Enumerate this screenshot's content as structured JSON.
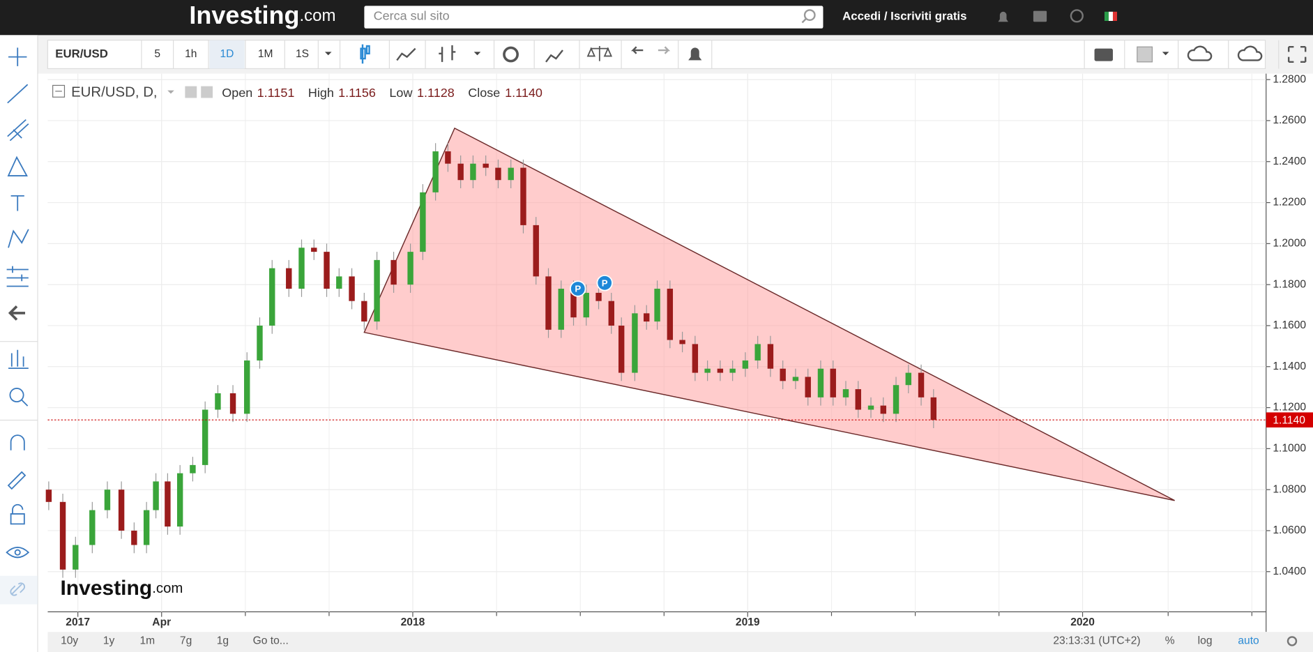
{
  "header": {
    "logo_main": "Investing",
    "logo_suffix": ".com",
    "search_placeholder": "Cerca sul sito",
    "login": "Accedi / Iscriviti gratis"
  },
  "toolbar": {
    "symbol": "EUR/USD",
    "intervals": [
      "5",
      "1h",
      "1D",
      "1M",
      "1S"
    ]
  },
  "bottom_bar": {
    "ranges": [
      "10y",
      "1y",
      "1m",
      "7g",
      "1g"
    ],
    "goto": "Go to...",
    "clock": "23:13:31 (UTC+2)",
    "percent": "%",
    "log": "log",
    "auto": "auto"
  },
  "chart_data": {
    "type": "candlestick",
    "legend_title": "EUR/USD, D,",
    "watermark_main": "Investing",
    "watermark_suffix": ".com",
    "ohlc_labels": {
      "open": "Open",
      "high": "High",
      "low": "Low",
      "close": "Close"
    },
    "ohlc": {
      "open": 1.1151,
      "high": 1.1156,
      "low": 1.1128,
      "close": {
        "value": 1.114,
        "label": "1.1140"
      }
    },
    "last_price": {
      "value": 1.114,
      "label": "1.1140"
    },
    "up_color": "#3aa53a",
    "down_color": "#9b1c1c",
    "x": [
      2016.913,
      2016.955,
      2016.993,
      2017.043,
      2017.088,
      2017.13,
      2017.168,
      2017.205,
      2017.233,
      2017.268,
      2017.305,
      2017.343,
      2017.38,
      2017.418,
      2017.463,
      2017.505,
      2017.543,
      2017.58,
      2017.63,
      2017.668,
      2017.705,
      2017.743,
      2017.78,
      2017.818,
      2017.855,
      2017.893,
      2017.943,
      2017.993,
      2018.03,
      2018.068,
      2018.105,
      2018.143,
      2018.18,
      2018.218,
      2018.255,
      2018.293,
      2018.33,
      2018.368,
      2018.405,
      2018.443,
      2018.48,
      2018.518,
      2018.555,
      2018.593,
      2018.623,
      2018.663,
      2018.698,
      2018.73,
      2018.768,
      2018.805,
      2018.843,
      2018.88,
      2018.918,
      2018.955,
      2018.993,
      2019.03,
      2019.068,
      2019.105,
      2019.143,
      2019.18,
      2019.218,
      2019.255,
      2019.293,
      2019.33,
      2019.368,
      2019.405,
      2019.443,
      2019.48,
      2019.518,
      2019.555
    ],
    "open": [
      1.08,
      1.074,
      1.041,
      1.053,
      1.07,
      1.08,
      1.06,
      1.053,
      1.07,
      1.084,
      1.062,
      1.088,
      1.092,
      1.119,
      1.127,
      1.117,
      1.143,
      1.16,
      1.188,
      1.178,
      1.198,
      1.196,
      1.178,
      1.184,
      1.172,
      1.162,
      1.192,
      1.18,
      1.196,
      1.225,
      1.245,
      1.239,
      1.231,
      1.239,
      1.237,
      1.231,
      1.237,
      1.209,
      1.184,
      1.158,
      1.178,
      1.164,
      1.176,
      1.172,
      1.16,
      1.137,
      1.166,
      1.162,
      1.178,
      1.153,
      1.151,
      1.137,
      1.139,
      1.137,
      1.139,
      1.143,
      1.151,
      1.139,
      1.133,
      1.135,
      1.125,
      1.139,
      1.125,
      1.129,
      1.119,
      1.121,
      1.117,
      1.131,
      1.137,
      1.125
    ],
    "high": [
      1.084,
      1.078,
      1.057,
      1.074,
      1.084,
      1.084,
      1.064,
      1.074,
      1.088,
      1.088,
      1.092,
      1.096,
      1.123,
      1.131,
      1.131,
      1.147,
      1.164,
      1.192,
      1.192,
      1.202,
      1.202,
      1.2,
      1.188,
      1.188,
      1.176,
      1.196,
      1.196,
      1.2,
      1.229,
      1.249,
      1.249,
      1.243,
      1.243,
      1.243,
      1.241,
      1.241,
      1.241,
      1.213,
      1.188,
      1.182,
      1.182,
      1.18,
      1.18,
      1.176,
      1.164,
      1.17,
      1.17,
      1.182,
      1.182,
      1.157,
      1.155,
      1.143,
      1.143,
      1.143,
      1.147,
      1.155,
      1.155,
      1.143,
      1.139,
      1.139,
      1.143,
      1.143,
      1.133,
      1.133,
      1.125,
      1.125,
      1.135,
      1.141,
      1.141,
      1.129
    ],
    "low": [
      1.07,
      1.037,
      1.037,
      1.049,
      1.066,
      1.056,
      1.049,
      1.049,
      1.066,
      1.058,
      1.058,
      1.084,
      1.088,
      1.115,
      1.113,
      1.113,
      1.139,
      1.156,
      1.174,
      1.174,
      1.192,
      1.174,
      1.174,
      1.168,
      1.158,
      1.158,
      1.176,
      1.176,
      1.192,
      1.221,
      1.235,
      1.227,
      1.227,
      1.233,
      1.227,
      1.227,
      1.205,
      1.18,
      1.154,
      1.154,
      1.16,
      1.16,
      1.168,
      1.156,
      1.133,
      1.133,
      1.158,
      1.158,
      1.149,
      1.147,
      1.133,
      1.133,
      1.133,
      1.133,
      1.135,
      1.139,
      1.135,
      1.129,
      1.129,
      1.121,
      1.121,
      1.121,
      1.121,
      1.115,
      1.115,
      1.113,
      1.113,
      1.127,
      1.121,
      1.11
    ],
    "close": [
      1.074,
      1.041,
      1.053,
      1.07,
      1.08,
      1.06,
      1.053,
      1.07,
      1.084,
      1.062,
      1.088,
      1.092,
      1.119,
      1.127,
      1.117,
      1.143,
      1.16,
      1.188,
      1.178,
      1.198,
      1.196,
      1.178,
      1.184,
      1.172,
      1.162,
      1.192,
      1.18,
      1.196,
      1.225,
      1.245,
      1.239,
      1.231,
      1.239,
      1.237,
      1.231,
      1.237,
      1.209,
      1.184,
      1.158,
      1.178,
      1.164,
      1.176,
      1.172,
      1.16,
      1.137,
      1.166,
      1.162,
      1.178,
      1.153,
      1.151,
      1.137,
      1.139,
      1.137,
      1.139,
      1.143,
      1.151,
      1.139,
      1.133,
      1.135,
      1.125,
      1.139,
      1.125,
      1.129,
      1.119,
      1.121,
      1.117,
      1.131,
      1.137,
      1.125,
      1.114
    ],
    "triangle": {
      "x": [
        2017.855,
        2018.125,
        2020.275
      ],
      "y": [
        1.1567,
        1.2563,
        1.0747
      ],
      "color": "#ff9a9a"
    },
    "markers": [
      {
        "x": 2018.493,
        "y": 1.178,
        "label": "P"
      },
      {
        "x": 2018.573,
        "y": 1.1808,
        "label": "P"
      }
    ],
    "xlim": [
      2016.91,
      2020.548
    ],
    "ylim": [
      1.0204,
      1.2829
    ],
    "xticks": [
      2017,
      {
        "value": 2017.25,
        "label": "Apr"
      },
      2018,
      2019,
      2020
    ],
    "yticks": [
      {
        "value": 1.04,
        "label": "1.0400"
      },
      {
        "value": 1.06,
        "label": "1.0600"
      },
      {
        "value": 1.08,
        "label": "1.0800"
      },
      {
        "value": 1.1,
        "label": "1.1000"
      },
      {
        "value": 1.12,
        "label": "1.1200"
      },
      {
        "value": 1.14,
        "label": "1.1400"
      },
      {
        "value": 1.16,
        "label": "1.1600"
      },
      {
        "value": 1.18,
        "label": "1.1800"
      },
      {
        "value": 1.2,
        "label": "1.2000"
      },
      {
        "value": 1.22,
        "label": "1.2200"
      },
      {
        "value": 1.24,
        "label": "1.2400"
      },
      {
        "value": 1.26,
        "label": "1.2600"
      },
      {
        "value": 1.28,
        "label": "1.2800"
      }
    ],
    "grid": true
  }
}
